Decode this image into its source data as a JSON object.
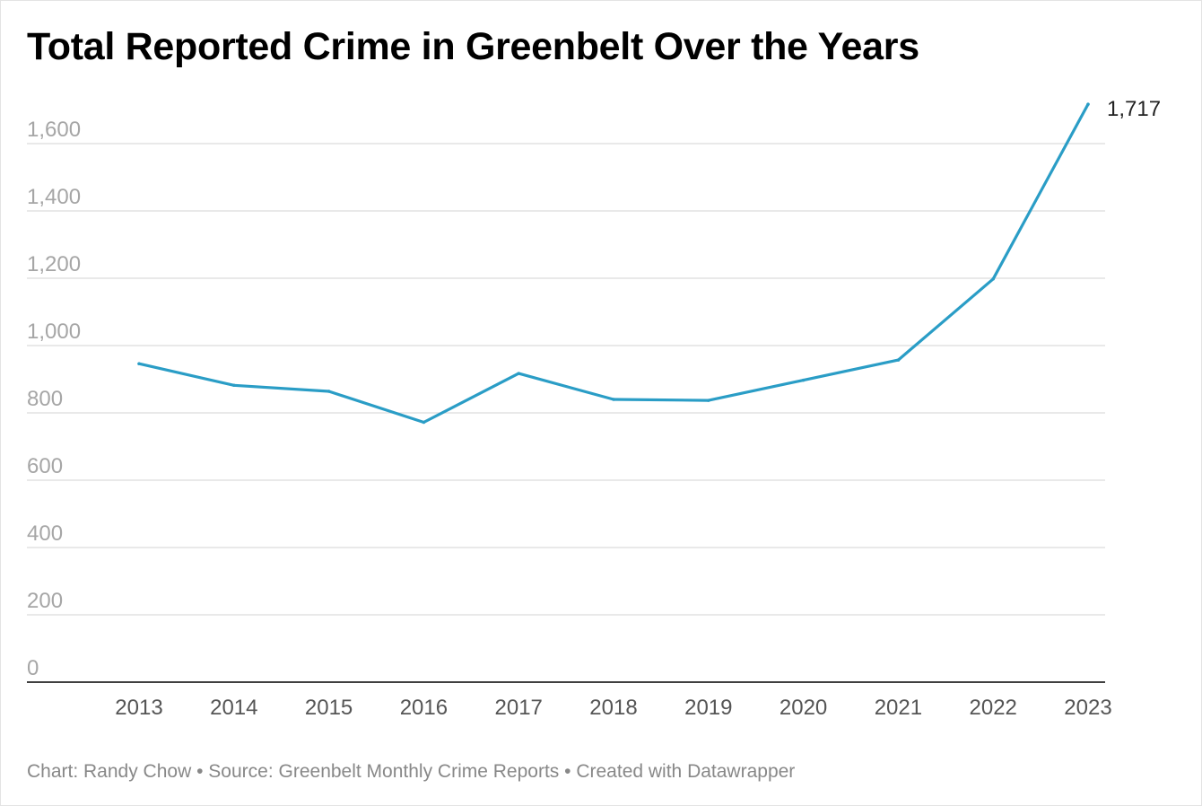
{
  "title": "Total Reported Crime in Greenbelt Over the Years",
  "footer": {
    "chart_credit": "Chart: Randy Chow",
    "source": "Source: Greenbelt Monthly Crime Reports",
    "created_with": "Created with Datawrapper",
    "separator": "•"
  },
  "colors": {
    "line": "#2a9dc6",
    "grid": "#dcdcdc",
    "axis": "#000000",
    "tick_label": "#a6a6a6",
    "x_tick_label": "#555555"
  },
  "chart_data": {
    "type": "line",
    "x": [
      "2013",
      "2014",
      "2015",
      "2016",
      "2017",
      "2018",
      "2019",
      "2020",
      "2021",
      "2022",
      "2023"
    ],
    "series": [
      {
        "values": [
          946,
          882,
          864,
          772,
          917,
          840,
          837,
          897,
          957,
          1198,
          1717
        ],
        "end_label": "1,717"
      }
    ],
    "ylim": [
      0,
      1600
    ],
    "yticks": [
      0,
      200,
      400,
      600,
      800,
      1000,
      1200,
      1400,
      1600
    ],
    "ytick_labels": [
      "0",
      "200",
      "400",
      "600",
      "800",
      "1,000",
      "1,200",
      "1,400",
      "1,600"
    ],
    "grid": true,
    "xlabel": "",
    "ylabel": ""
  }
}
